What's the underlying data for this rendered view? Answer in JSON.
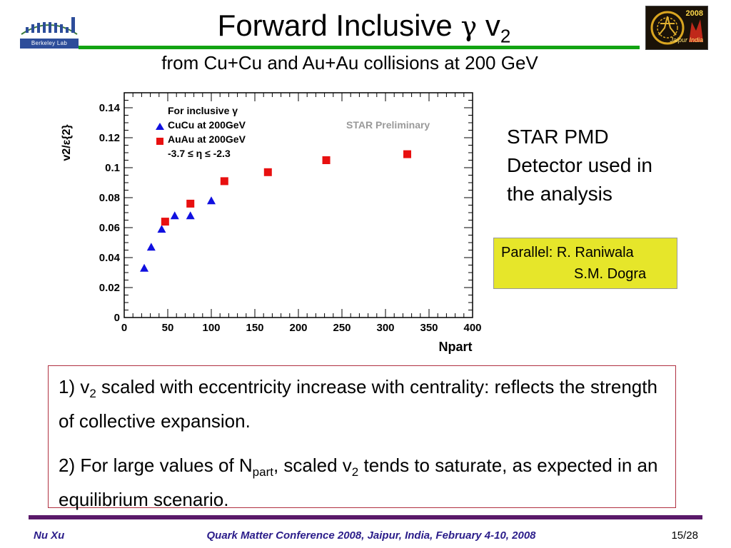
{
  "header": {
    "title_main": "Forward Inclusive ",
    "title_greek": "γ",
    "title_v": " v",
    "title_sub": "2",
    "subtitle": "from Cu+Cu and Au+Au collisions at 200 GeV",
    "logo_left_text": "Berkeley Lab",
    "logo_right_year": "2008",
    "logo_right_city": "Jaipur India",
    "accent_color": "#12a312"
  },
  "chart_data": {
    "type": "scatter",
    "ylabel": "v2/ε{2}",
    "xlabel": "Npart",
    "xlim": [
      0,
      400
    ],
    "ylim": [
      0,
      0.15
    ],
    "x_ticks": [
      "0",
      "50",
      "100",
      "150",
      "200",
      "250",
      "300",
      "350",
      "400"
    ],
    "y_ticks": [
      "0",
      "0.02",
      "0.04",
      "0.06",
      "0.08",
      "0.1",
      "0.12",
      "0.14"
    ],
    "legend_title": "For inclusive γ",
    "legend_cut": "-3.7 ≤ η ≤ -2.3",
    "legend_position": "top-left",
    "watermark": "STAR Preliminary",
    "series": [
      {
        "name": "CuCu at 200GeV",
        "marker": "triangle",
        "color": "#1010e0",
        "x": [
          23,
          31,
          43,
          58,
          76,
          100
        ],
        "y": [
          0.033,
          0.047,
          0.059,
          0.068,
          0.068,
          0.078
        ]
      },
      {
        "name": "AuAu at 200GeV",
        "marker": "square",
        "color": "#e81010",
        "x": [
          47,
          76,
          115,
          165,
          232,
          325
        ],
        "y": [
          0.064,
          0.076,
          0.091,
          0.097,
          0.105,
          0.109
        ]
      }
    ]
  },
  "side": {
    "pmd_lines": [
      "STAR PMD",
      "Detector used in",
      "the analysis"
    ],
    "parallel_line1": "Parallel: R. Raniwala",
    "parallel_line2": "S.M. Dogra",
    "parallel_bg": "#e6e62a"
  },
  "summary": {
    "p1_a": "1) v",
    "p1_sub": "2",
    "p1_b": " scaled with eccentricity increase with centrality: reflects the strength of collective expansion.",
    "p2_a": "2)  For large values of N",
    "p2_sub1": "part",
    "p2_b": ", scaled v",
    "p2_sub2": "2",
    "p2_c": " tends to saturate, as expected in an equilibrium scenario."
  },
  "footer": {
    "author": "Nu Xu",
    "conference": "Quark Matter Conference 2008, Jaipur, India, February 4-10, 2008",
    "page": "15/28"
  }
}
